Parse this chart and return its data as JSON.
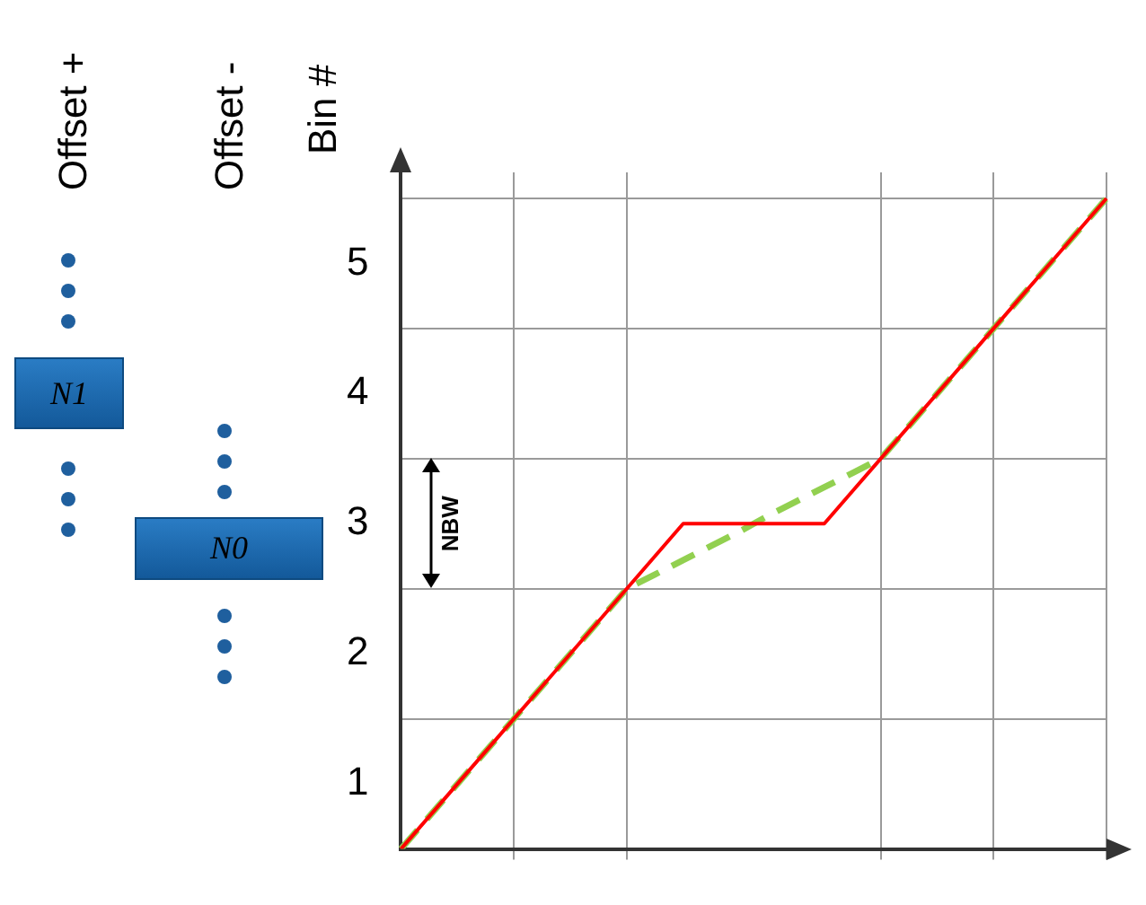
{
  "chart_data": {
    "type": "line",
    "ylabel": "Bin #",
    "ylim": [
      0.5,
      5.7
    ],
    "categories": [
      null,
      null,
      null,
      null,
      null,
      null,
      null,
      null,
      null,
      null,
      null,
      null,
      null,
      null,
      null,
      null,
      null,
      null,
      null,
      null,
      null,
      null,
      null,
      null,
      null,
      null
    ],
    "yticks": [
      1,
      {
        "value": 1.5,
        "label": null
      },
      2,
      {
        "value": 2.5,
        "label": null
      },
      3,
      {
        "value": 3.5,
        "label": null
      },
      4,
      {
        "value": 4.5,
        "label": null
      },
      5,
      {
        "value": 5.5,
        "label": null
      }
    ],
    "grid": true,
    "tick_labels": "y",
    "legend": false,
    "series": [
      {
        "color": "#ff0000",
        "values": [
          0.5,
          0.75,
          1,
          1.25,
          1.5,
          1.75,
          2,
          2.25,
          2.5,
          2.75,
          3,
          3,
          3,
          3,
          3,
          3,
          3.25,
          3.5,
          3.75,
          4,
          4.25,
          4.5,
          4.75,
          5,
          5.25,
          5.5
        ]
      },
      {
        "color": "#92d050",
        "line_style": "dashed",
        "values": [
          0.5,
          0.75,
          1,
          1.25,
          1.5,
          1.75,
          2,
          2.25,
          2.5,
          2.61,
          2.72,
          2.83,
          2.94,
          3.06,
          3.17,
          3.28,
          3.39,
          3.5,
          3.75,
          4,
          4.25,
          4.5,
          4.75,
          5,
          5.25,
          5.5
        ]
      }
    ],
    "annotations": [
      "Offset +",
      "Offset -",
      "N1",
      "N0",
      "NBW"
    ]
  }
}
